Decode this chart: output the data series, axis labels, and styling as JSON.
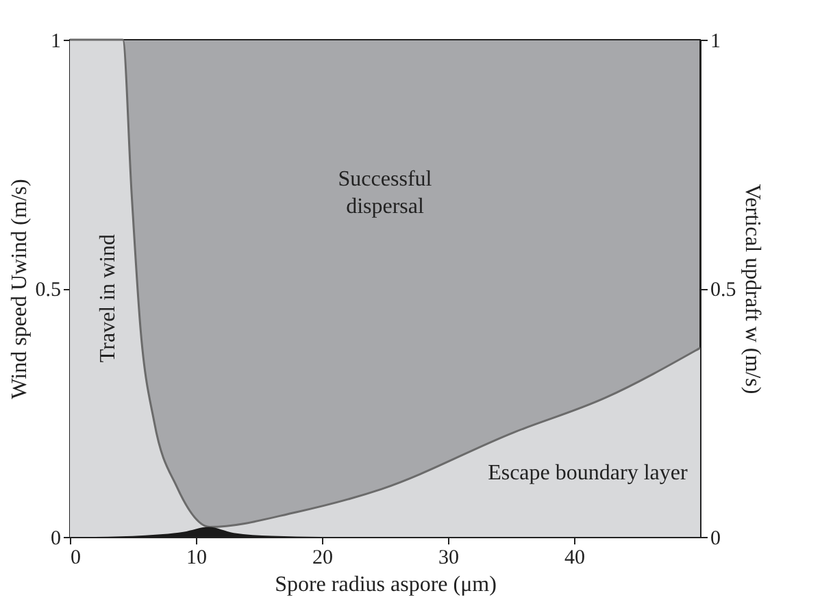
{
  "chart_data": {
    "type": "area",
    "xlabel": "Spore radius aspore (μm)",
    "ylabel": "Wind speed Uwind (m/s)",
    "y2label": "Vertical updraft w (m/s)",
    "xlim": [
      0,
      50
    ],
    "xticks": [
      0,
      10,
      20,
      30,
      40
    ],
    "ylim": [
      0,
      1
    ],
    "yticks": [
      0,
      0.5,
      1
    ],
    "y2lim": [
      0,
      1
    ],
    "y2ticks": [
      0,
      0.5,
      1
    ],
    "series": [
      {
        "color": "#d8d9db",
        "x": [
          0,
          4.2,
          4.9,
          5.6,
          6.7,
          8.5,
          11.1,
          18,
          24.7,
          35.2,
          42.5,
          50
        ],
        "values": [
          1,
          1,
          0.69,
          0.42,
          0.23,
          0.1,
          0.02,
          0.05,
          0.096,
          0.21,
          0.28,
          0.38
        ]
      },
      {
        "color": "#1a1a1a",
        "x": [
          2,
          6,
          9,
          11,
          13,
          16,
          20
        ],
        "values": [
          0,
          0.003,
          0.01,
          0.02,
          0.008,
          0.002,
          0
        ]
      }
    ],
    "annotations": [
      "Successful\ndispersal",
      "Travel in wind",
      "Escape boundary layer"
    ]
  }
}
